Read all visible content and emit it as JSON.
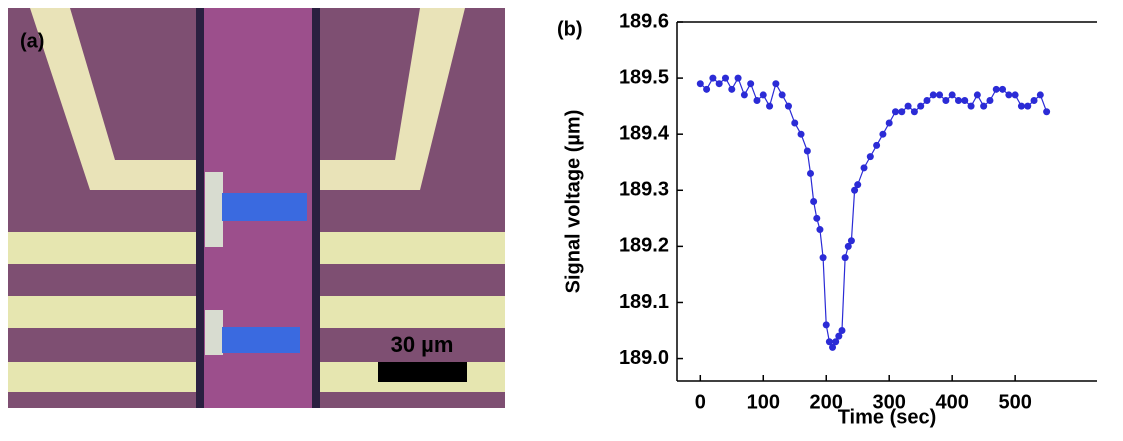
{
  "panel_a": {
    "label": "(a)",
    "scale_bar": "30 µm"
  },
  "chart_data": {
    "type": "line",
    "panel_label": "(b)",
    "x_label": "Time (sec)",
    "y_label": "Signal voltage (µm)",
    "x": [
      0,
      10,
      20,
      30,
      40,
      50,
      60,
      70,
      80,
      90,
      100,
      110,
      120,
      130,
      140,
      150,
      160,
      170,
      175,
      180,
      185,
      190,
      195,
      200,
      205,
      210,
      215,
      220,
      225,
      230,
      235,
      240,
      245,
      250,
      260,
      270,
      280,
      290,
      300,
      310,
      320,
      330,
      340,
      350,
      360,
      370,
      380,
      390,
      400,
      410,
      420,
      430,
      440,
      450,
      460,
      470,
      480,
      490,
      500,
      510,
      520,
      530,
      540,
      550
    ],
    "values": [
      189.49,
      189.48,
      189.5,
      189.49,
      189.5,
      189.48,
      189.5,
      189.47,
      189.49,
      189.46,
      189.47,
      189.45,
      189.49,
      189.47,
      189.45,
      189.42,
      189.4,
      189.37,
      189.33,
      189.28,
      189.25,
      189.23,
      189.18,
      189.06,
      189.03,
      189.02,
      189.03,
      189.04,
      189.05,
      189.18,
      189.2,
      189.21,
      189.3,
      189.31,
      189.34,
      189.36,
      189.38,
      189.4,
      189.42,
      189.44,
      189.44,
      189.45,
      189.44,
      189.45,
      189.46,
      189.47,
      189.47,
      189.46,
      189.47,
      189.46,
      189.46,
      189.45,
      189.47,
      189.45,
      189.46,
      189.48,
      189.48,
      189.47,
      189.47,
      189.45,
      189.45,
      189.46,
      189.47,
      189.44
    ],
    "color": "#2b2bd6",
    "xlim": [
      -37,
      630
    ],
    "ylim": [
      188.96,
      189.6
    ],
    "xticks": [
      0,
      100,
      200,
      300,
      400,
      500
    ],
    "yticks": [
      {
        "value": 189.0,
        "label": "189.0"
      },
      189.1,
      189.2,
      189.3,
      189.4,
      189.5,
      189.6
    ]
  }
}
